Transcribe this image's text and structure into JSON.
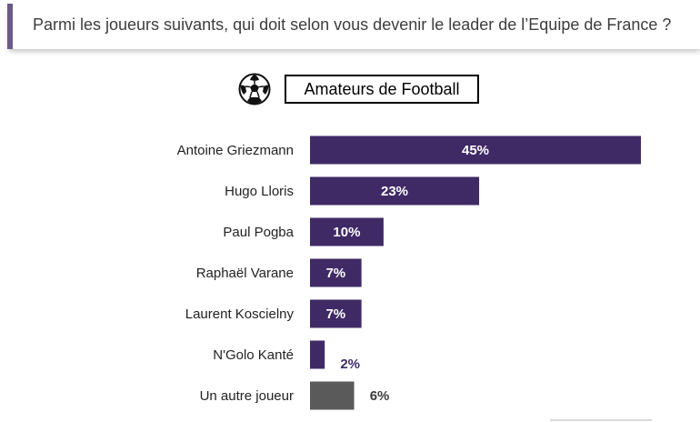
{
  "question": "Parmi les joueurs suivants, qui doit selon vous devenir le leader de l’Equipe de France ?",
  "segment_label": "Amateurs de Football",
  "segment_icon": "soccer-ball-icon",
  "colors": {
    "bar": "#3f2a66",
    "bar_other": "#5a5a5a",
    "label_inside": "#ffffff",
    "label_outside_bar": "#3f2a66",
    "label_outside_other": "#3a3a3a",
    "category_text": "#222222",
    "accent": "#6b5a86"
  },
  "chart_data": {
    "type": "bar",
    "orientation": "horizontal",
    "categories": [
      "Antoine Griezmann",
      "Hugo Lloris",
      "Paul Pogba",
      "Raphaël Varane",
      "Laurent Koscielny",
      "N'Golo Kanté",
      "Un autre joueur"
    ],
    "values": [
      45,
      23,
      10,
      7,
      7,
      2,
      6
    ],
    "value_labels": [
      "45%",
      "23%",
      "10%",
      "7%",
      "7%",
      "2%",
      "6%"
    ],
    "title": "",
    "xlabel": "",
    "ylabel": "",
    "xlim": [
      0,
      45
    ],
    "grid": false,
    "legend": "none",
    "highlight_last": true
  }
}
